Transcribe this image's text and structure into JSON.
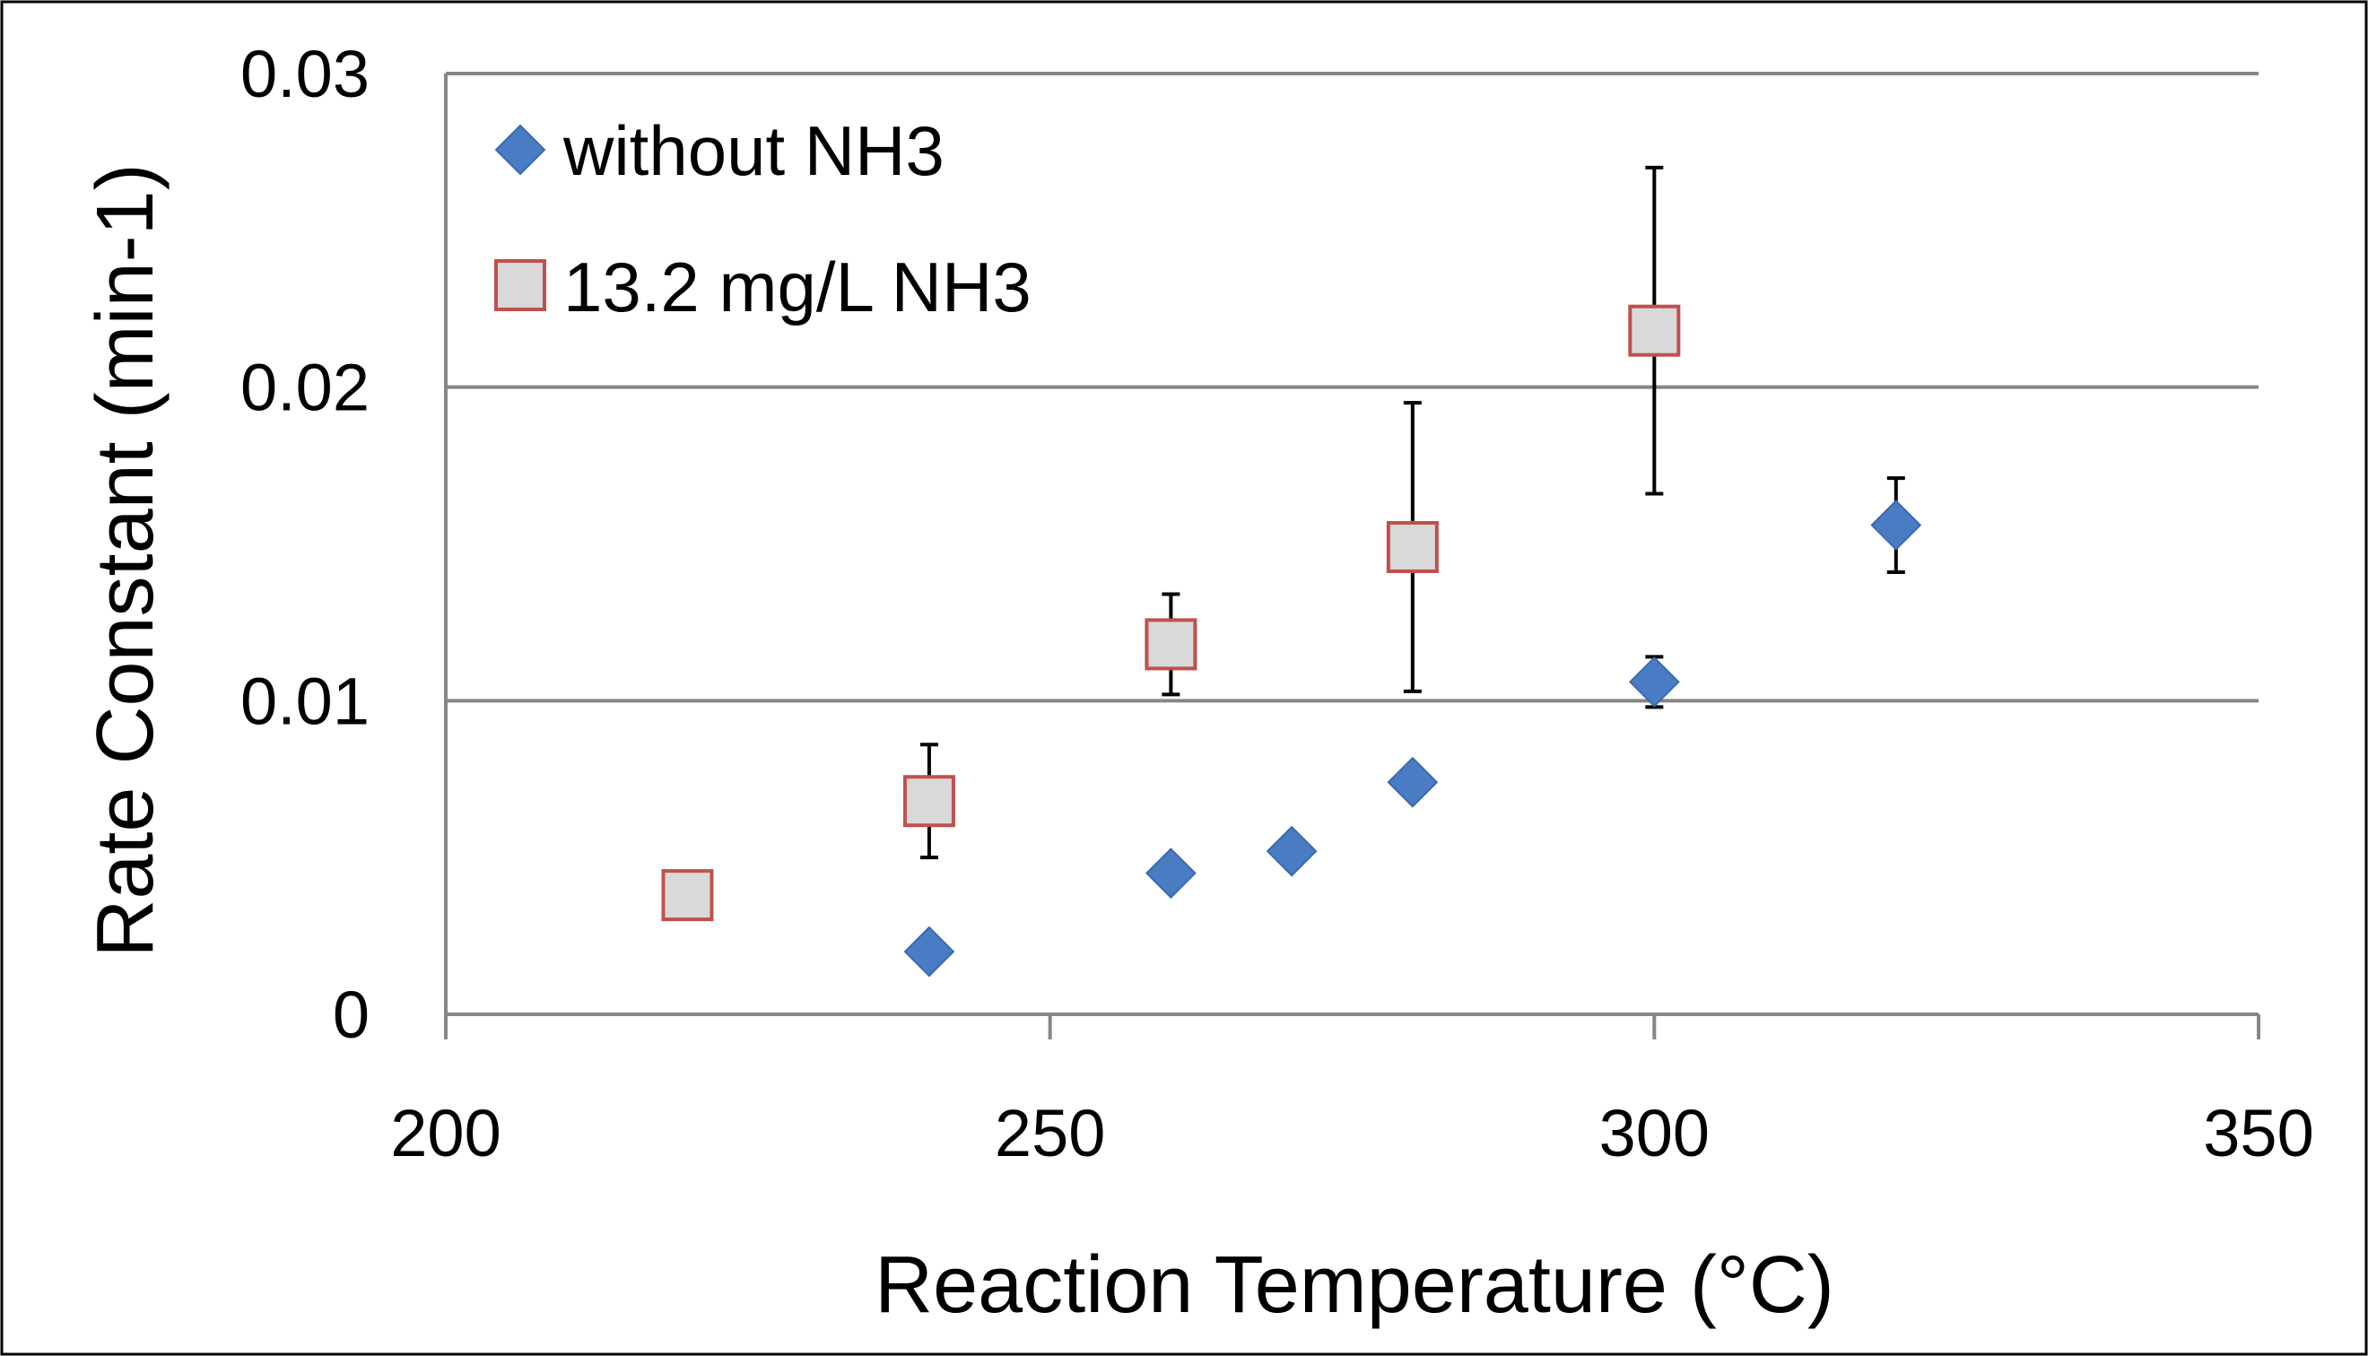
{
  "chart_data": {
    "type": "scatter",
    "title": "",
    "xlabel": "Reaction Temperature (°C)",
    "ylabel": "Rate Constant (min-1)",
    "xlim": [
      200,
      350
    ],
    "ylim": [
      0,
      0.03
    ],
    "x_ticks": [
      200,
      250,
      300,
      350
    ],
    "x_tick_labels": [
      "200",
      "250",
      "300",
      "350"
    ],
    "y_ticks": [
      0,
      0.01,
      0.02,
      0.03
    ],
    "y_tick_labels": [
      "0",
      "0.01",
      "0.02",
      "0.03"
    ],
    "grid": "horizontal",
    "legend_position": "top-left",
    "series": [
      {
        "name": "without NH3",
        "marker": "diamond",
        "color": "#4a7cc4",
        "edge_color": "#3a6aae",
        "points": [
          {
            "x": 240,
            "y": 0.002,
            "err": 0.0004
          },
          {
            "x": 260,
            "y": 0.0045,
            "err": 0.0004
          },
          {
            "x": 270,
            "y": 0.0052,
            "err": 0.0004
          },
          {
            "x": 280,
            "y": 0.0074,
            "err": 0.0004
          },
          {
            "x": 300,
            "y": 0.0106,
            "err": 0.0008
          },
          {
            "x": 320,
            "y": 0.0156,
            "err": 0.0015
          }
        ]
      },
      {
        "name": "13.2 mg/L NH3",
        "marker": "square",
        "color": "#d9d9d9",
        "edge_color": "#c0504d",
        "points": [
          {
            "x": 220,
            "y": 0.0038,
            "err": 0.0
          },
          {
            "x": 240,
            "y": 0.0068,
            "err": 0.0018
          },
          {
            "x": 260,
            "y": 0.0118,
            "err": 0.0016
          },
          {
            "x": 280,
            "y": 0.0149,
            "err": 0.0046
          },
          {
            "x": 300,
            "y": 0.0218,
            "err": 0.0052
          }
        ]
      }
    ]
  }
}
